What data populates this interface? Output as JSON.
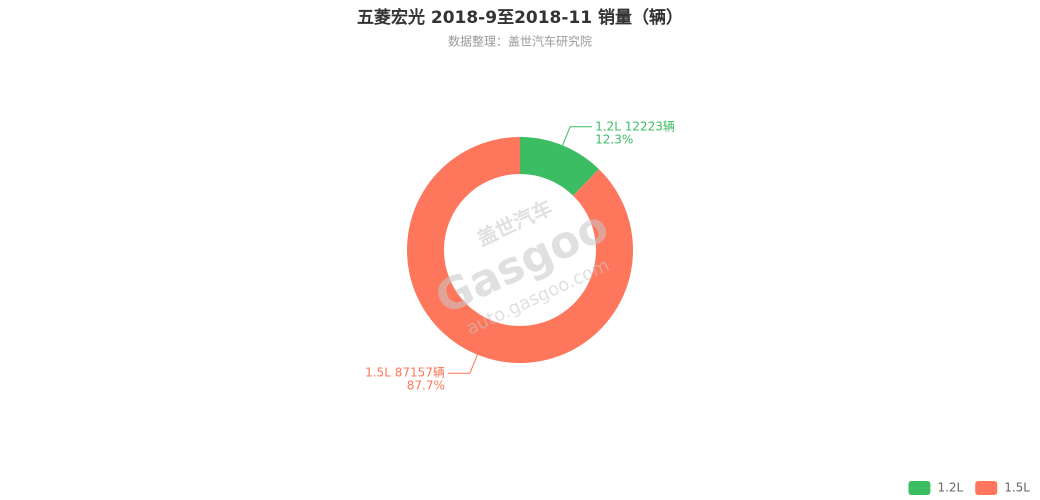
{
  "chart_data": {
    "type": "donut",
    "title": "五菱宏光 2018-9至2018-11 销量（辆）",
    "subtitle": "数据整理：盖世汽车研究院",
    "categories": [
      "1.2L",
      "1.5L"
    ],
    "values": [
      12223,
      87157
    ],
    "value_labels": [
      "1.2L 12223辆",
      "1.5L 87157辆"
    ],
    "percent_labels": [
      "12.3%",
      "87.7%"
    ],
    "colors": [
      "#3dbd63",
      "#fe765b"
    ],
    "legend": "bottom-right"
  },
  "watermark": {
    "brand": "盖世汽车",
    "logo": "Gasgoo",
    "url": "auto.gasgoo.com"
  }
}
